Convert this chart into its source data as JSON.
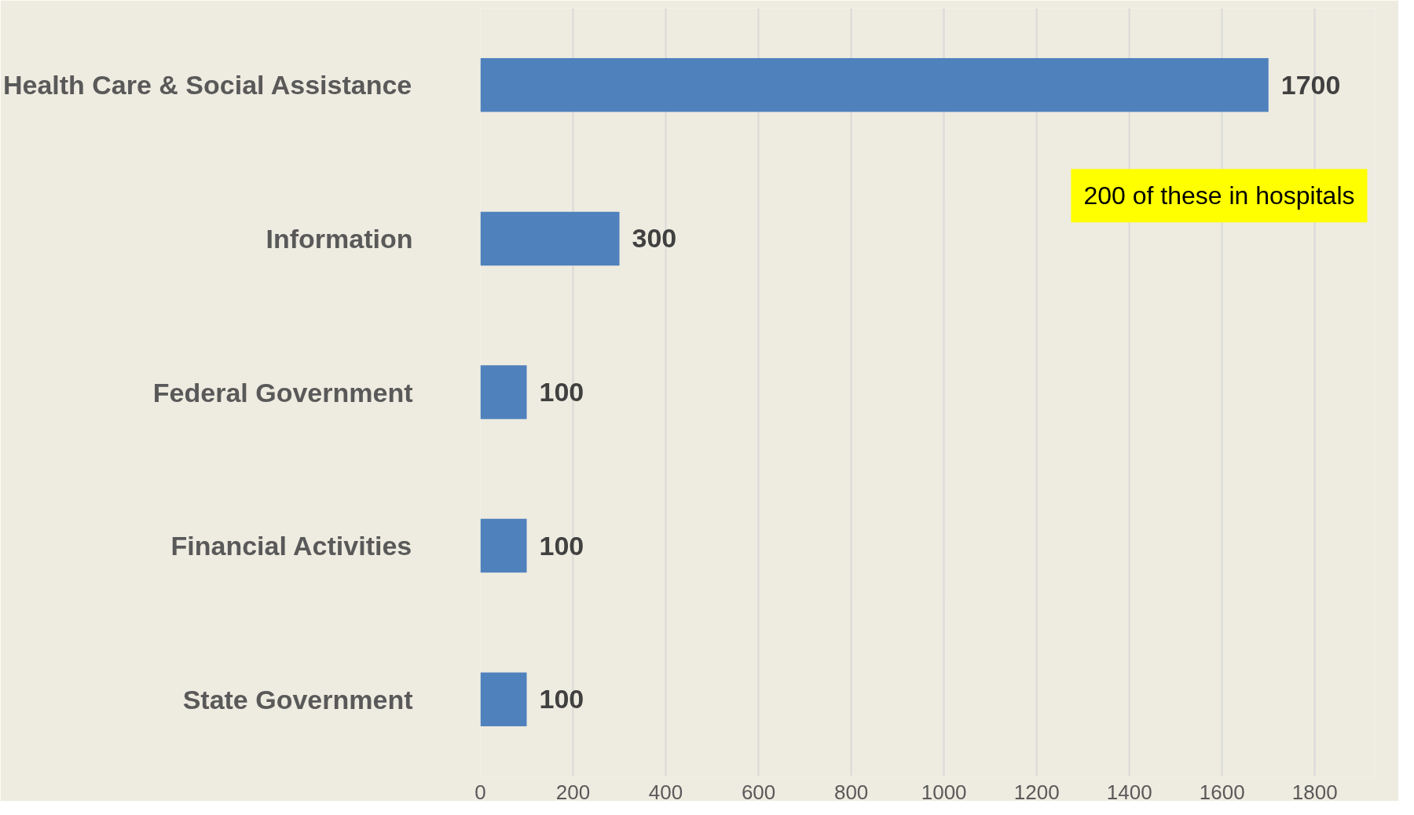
{
  "chart_data": {
    "type": "bar",
    "orientation": "horizontal",
    "categories": [
      "Health Care & Social Assistance",
      "Information",
      "Federal Government",
      "Financial Activities",
      "State Government"
    ],
    "values": [
      1700,
      300,
      100,
      100,
      100
    ],
    "color": "#4f81bd",
    "xlim": [
      0,
      1930
    ],
    "xticks": [
      0,
      200,
      400,
      600,
      800,
      1000,
      1200,
      1400,
      1600,
      1800
    ],
    "grid": "x",
    "data_labels": true,
    "annotations": [
      "200 of these in hospitals"
    ]
  }
}
